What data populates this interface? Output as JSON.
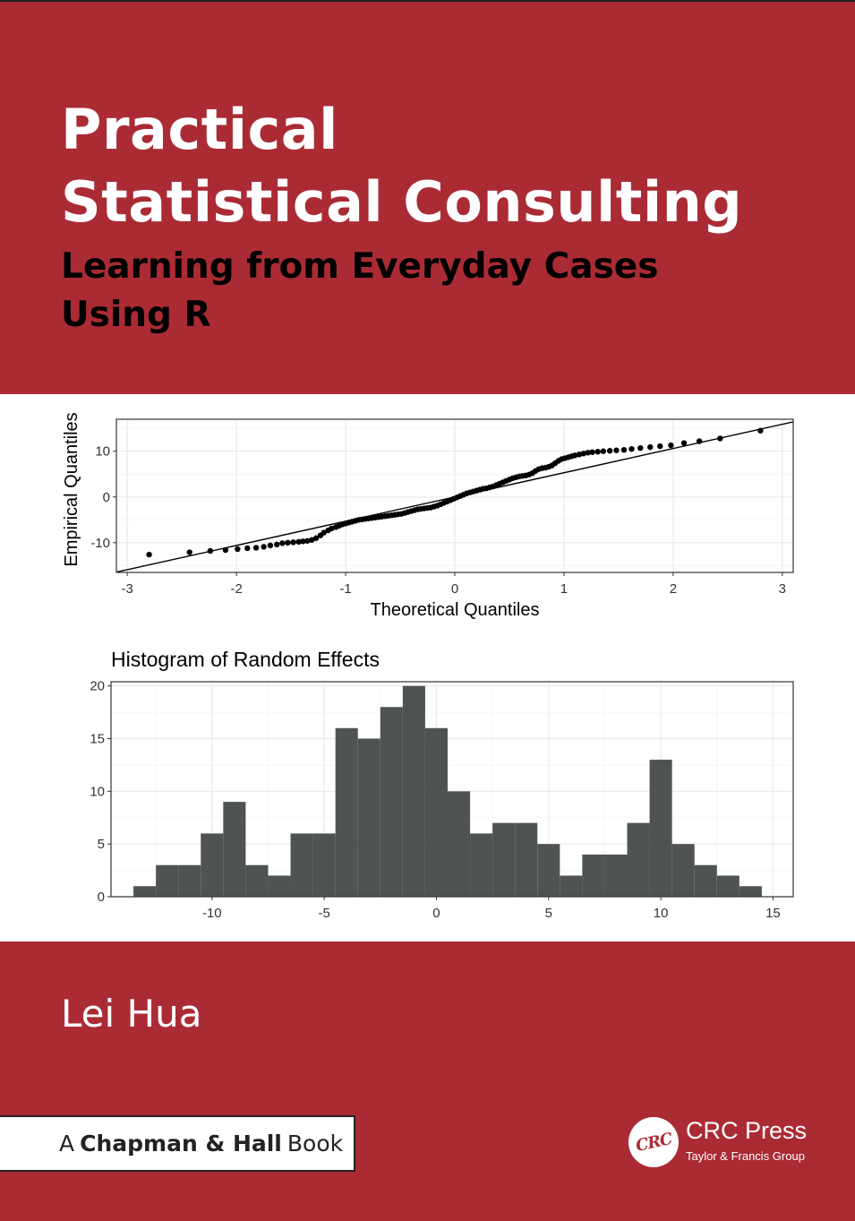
{
  "book": {
    "title_line1": "Practical",
    "title_line2": "Statistical Consulting",
    "subtitle_line1": "Learning from Everyday Cases",
    "subtitle_line2": "Using R",
    "author": "Lei Hua",
    "series_prefix": "A",
    "series_bold": "Chapman & Hall",
    "series_suffix": "Book",
    "publisher_logo_text": "CRC",
    "publisher_name": "CRC Press",
    "publisher_group": "Taylor & Francis Group"
  },
  "colors": {
    "band": "#ab2b35",
    "bar_fill": "#505354",
    "grid": "#ebebeb"
  },
  "chart_data": [
    {
      "type": "scatter",
      "xlabel": "Theoretical Quantiles",
      "ylabel": "Empirical Quantiles",
      "xlim": [
        -3.1,
        3.1
      ],
      "ylim": [
        -16.5,
        17
      ],
      "xticks": [
        -3,
        -2,
        -1,
        0,
        1,
        2,
        3
      ],
      "yticks": [
        -10,
        0,
        10
      ],
      "reference_line": {
        "slope": 5.3,
        "intercept": 0
      },
      "grid": true,
      "points": [
        [
          -2.8,
          -12.6
        ],
        [
          -2.43,
          -12.1
        ],
        [
          -2.24,
          -11.8
        ],
        [
          -2.1,
          -11.6
        ],
        [
          -1.99,
          -11.4
        ],
        [
          -1.9,
          -11.2
        ],
        [
          -1.82,
          -11.1
        ],
        [
          -1.75,
          -10.9
        ],
        [
          -1.69,
          -10.6
        ],
        [
          -1.63,
          -10.4
        ],
        [
          -1.58,
          -10.1
        ],
        [
          -1.53,
          -10.0
        ],
        [
          -1.48,
          -9.9
        ],
        [
          -1.43,
          -9.8
        ],
        [
          -1.39,
          -9.7
        ],
        [
          -1.35,
          -9.6
        ],
        [
          -1.31,
          -9.4
        ],
        [
          -1.27,
          -9.0
        ],
        [
          -1.23,
          -8.4
        ],
        [
          -1.2,
          -7.8
        ],
        [
          -1.16,
          -7.3
        ],
        [
          -1.13,
          -6.9
        ],
        [
          -1.09,
          -6.6
        ],
        [
          -1.06,
          -6.3
        ],
        [
          -1.03,
          -6.0
        ],
        [
          -1.0,
          -5.8
        ],
        [
          -0.97,
          -5.6
        ],
        [
          -0.94,
          -5.4
        ],
        [
          -0.91,
          -5.2
        ],
        [
          -0.88,
          -5.0
        ],
        [
          -0.85,
          -4.9
        ],
        [
          -0.82,
          -4.8
        ],
        [
          -0.79,
          -4.7
        ],
        [
          -0.76,
          -4.6
        ],
        [
          -0.73,
          -4.5
        ],
        [
          -0.7,
          -4.4
        ],
        [
          -0.67,
          -4.3
        ],
        [
          -0.64,
          -4.2
        ],
        [
          -0.61,
          -4.1
        ],
        [
          -0.58,
          -4.0
        ],
        [
          -0.55,
          -3.9
        ],
        [
          -0.52,
          -3.8
        ],
        [
          -0.49,
          -3.7
        ],
        [
          -0.46,
          -3.5
        ],
        [
          -0.43,
          -3.3
        ],
        [
          -0.4,
          -3.1
        ],
        [
          -0.37,
          -2.9
        ],
        [
          -0.34,
          -2.7
        ],
        [
          -0.31,
          -2.6
        ],
        [
          -0.28,
          -2.5
        ],
        [
          -0.25,
          -2.4
        ],
        [
          -0.22,
          -2.3
        ],
        [
          -0.19,
          -2.1
        ],
        [
          -0.16,
          -1.9
        ],
        [
          -0.13,
          -1.6
        ],
        [
          -0.1,
          -1.3
        ],
        [
          -0.07,
          -1.0
        ],
        [
          -0.04,
          -0.7
        ],
        [
          -0.01,
          -0.4
        ],
        [
          0.02,
          -0.1
        ],
        [
          0.05,
          0.2
        ],
        [
          0.08,
          0.5
        ],
        [
          0.11,
          0.8
        ],
        [
          0.14,
          1.0
        ],
        [
          0.17,
          1.2
        ],
        [
          0.2,
          1.4
        ],
        [
          0.23,
          1.6
        ],
        [
          0.26,
          1.8
        ],
        [
          0.29,
          1.9
        ],
        [
          0.32,
          2.1
        ],
        [
          0.35,
          2.3
        ],
        [
          0.38,
          2.6
        ],
        [
          0.41,
          2.9
        ],
        [
          0.44,
          3.2
        ],
        [
          0.47,
          3.5
        ],
        [
          0.5,
          3.8
        ],
        [
          0.53,
          4.1
        ],
        [
          0.56,
          4.3
        ],
        [
          0.59,
          4.5
        ],
        [
          0.62,
          4.6
        ],
        [
          0.65,
          4.7
        ],
        [
          0.68,
          4.9
        ],
        [
          0.71,
          5.2
        ],
        [
          0.74,
          5.7
        ],
        [
          0.77,
          6.1
        ],
        [
          0.8,
          6.3
        ],
        [
          0.83,
          6.4
        ],
        [
          0.86,
          6.6
        ],
        [
          0.89,
          6.9
        ],
        [
          0.92,
          7.4
        ],
        [
          0.95,
          7.9
        ],
        [
          0.98,
          8.3
        ],
        [
          1.01,
          8.5
        ],
        [
          1.04,
          8.7
        ],
        [
          1.07,
          8.9
        ],
        [
          1.1,
          9.1
        ],
        [
          1.14,
          9.3
        ],
        [
          1.18,
          9.5
        ],
        [
          1.22,
          9.7
        ],
        [
          1.26,
          9.8
        ],
        [
          1.31,
          9.9
        ],
        [
          1.36,
          10.0
        ],
        [
          1.42,
          10.1
        ],
        [
          1.48,
          10.2
        ],
        [
          1.55,
          10.3
        ],
        [
          1.62,
          10.5
        ],
        [
          1.7,
          10.7
        ],
        [
          1.79,
          10.9
        ],
        [
          1.88,
          11.1
        ],
        [
          1.98,
          11.3
        ],
        [
          2.1,
          11.8
        ],
        [
          2.24,
          12.2
        ],
        [
          2.43,
          12.8
        ],
        [
          2.8,
          14.5
        ]
      ]
    },
    {
      "type": "bar",
      "title": "Histogram of Random Effects",
      "xlim": [
        -14.5,
        15.9
      ],
      "ylim": [
        0,
        20.4
      ],
      "xticks": [
        -10,
        -5,
        0,
        5,
        10,
        15
      ],
      "yticks": [
        0,
        5,
        10,
        15,
        20
      ],
      "bin_width": 1,
      "bin_starts": [
        -13.5,
        -12.5,
        -11.5,
        -10.5,
        -9.5,
        -8.5,
        -7.5,
        -6.5,
        -5.5,
        -4.5,
        -3.5,
        -2.5,
        -1.5,
        -0.5,
        0.5,
        1.5,
        2.5,
        3.5,
        4.5,
        5.5,
        6.5,
        7.5,
        8.5,
        9.5,
        10.5,
        11.5,
        12.5,
        13.5
      ],
      "values": [
        1,
        3,
        3,
        6,
        9,
        3,
        2,
        6,
        6,
        16,
        15,
        18,
        20,
        16,
        10,
        6,
        7,
        7,
        5,
        2,
        4,
        4,
        7,
        13,
        5,
        3,
        2,
        1
      ]
    }
  ]
}
